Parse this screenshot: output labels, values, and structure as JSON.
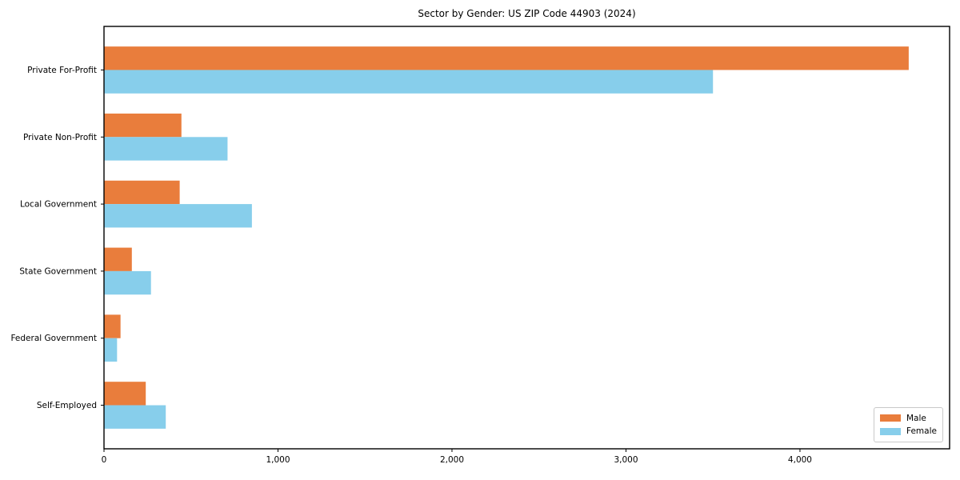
{
  "chart_data": {
    "type": "bar",
    "orientation": "horizontal",
    "title": "Sector by Gender: US ZIP Code 44903 (2024)",
    "categories": [
      "Private For-Profit",
      "Private Non-Profit",
      "Local Government",
      "State Government",
      "Federal Government",
      "Self-Employed"
    ],
    "series": [
      {
        "name": "Male",
        "color": "#E97D3C",
        "values": [
          4625,
          445,
          435,
          160,
          95,
          240
        ]
      },
      {
        "name": "Female",
        "color": "#87CEEB",
        "values": [
          3500,
          710,
          850,
          270,
          75,
          355
        ]
      }
    ],
    "xlabel": "",
    "ylabel": "",
    "xlim": [
      0,
      4860
    ],
    "xticks": [
      0,
      1000,
      2000,
      3000,
      4000
    ],
    "xtick_labels": [
      "0",
      "1,000",
      "2,000",
      "3,000",
      "4,000"
    ],
    "grid": false,
    "background": "#ffffff",
    "spine_color": "#000000",
    "legend": {
      "position": "lower right",
      "labels": [
        "Male",
        "Female"
      ]
    }
  }
}
